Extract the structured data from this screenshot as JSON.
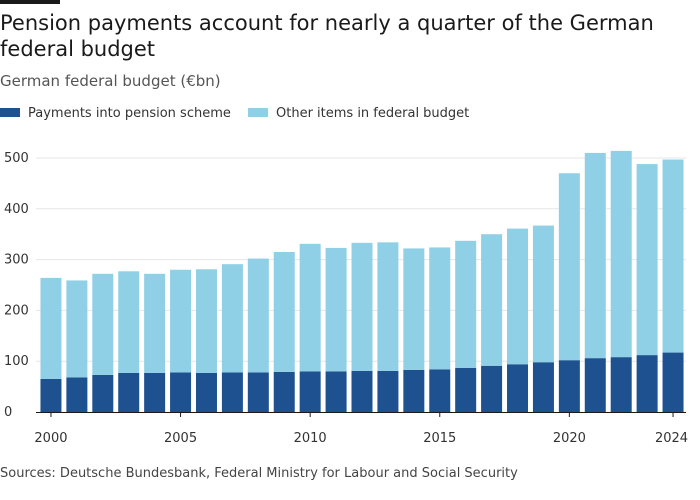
{
  "title": "Pension payments account for nearly a quarter of the German federal budget",
  "subtitle": "German federal budget (€bn)",
  "source": "Sources: Deutsche Bundesbank, Federal Ministry for Labour and Social Security",
  "colors": {
    "pension": "#1e5190",
    "other": "#90d0e6",
    "grid": "#e6e6e6",
    "axis": "#1a1a1a"
  },
  "chart_data": {
    "type": "bar",
    "stacked": true,
    "categories": [
      "2000",
      "2001",
      "2002",
      "2003",
      "2004",
      "2005",
      "2006",
      "2007",
      "2008",
      "2009",
      "2010",
      "2011",
      "2012",
      "2013",
      "2014",
      "2015",
      "2016",
      "2017",
      "2018",
      "2019",
      "2020",
      "2021",
      "2022",
      "2023",
      "2024"
    ],
    "series": [
      {
        "name": "Payments into pension scheme",
        "values": [
          65,
          68,
          73,
          77,
          77,
          78,
          77,
          78,
          78,
          79,
          80,
          80,
          81,
          81,
          83,
          84,
          87,
          91,
          94,
          98,
          102,
          106,
          108,
          112,
          117
        ]
      },
      {
        "name": "Other items in federal budget",
        "values": [
          199,
          191,
          199,
          200,
          195,
          202,
          204,
          213,
          224,
          236,
          251,
          243,
          252,
          253,
          239,
          240,
          250,
          259,
          267,
          269,
          368,
          404,
          406,
          376,
          380
        ]
      }
    ],
    "yticks": [
      "0",
      "100",
      "200",
      "300",
      "400",
      "500"
    ],
    "xticks": [
      "2000",
      "2005",
      "2010",
      "2015",
      "2020",
      "2024"
    ],
    "ylim": [
      0,
      530
    ],
    "grid": true,
    "legend": "top-left"
  }
}
